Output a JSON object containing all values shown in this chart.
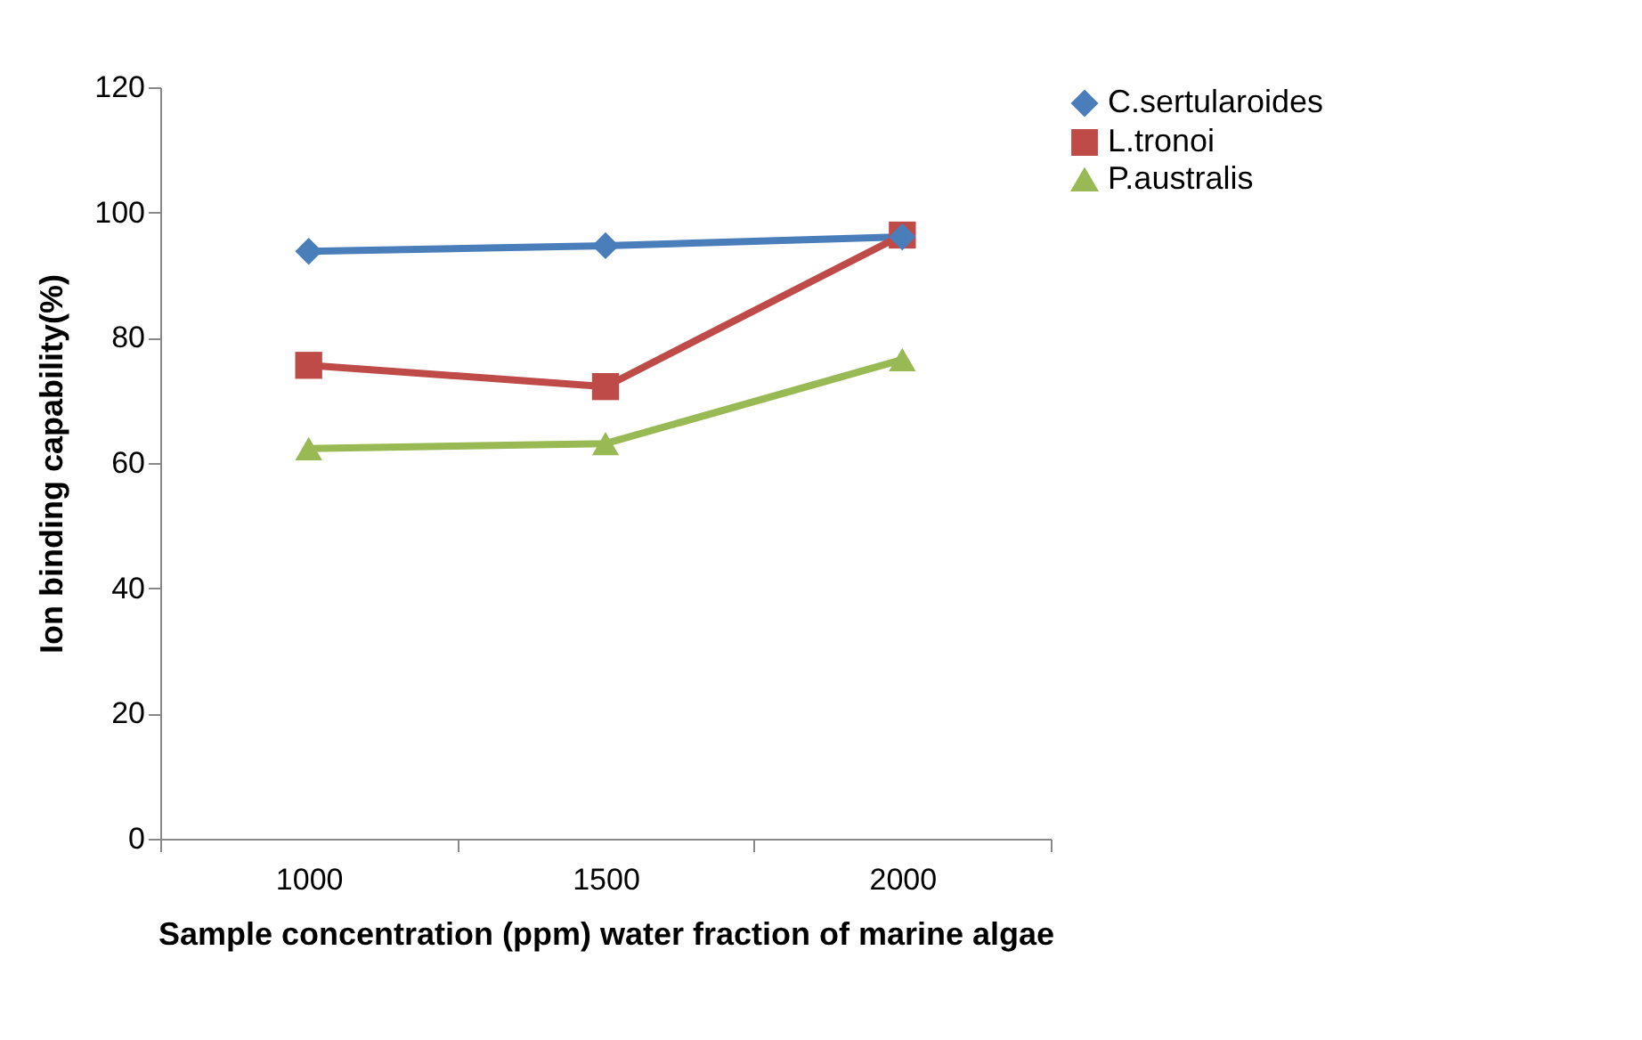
{
  "chart_data": {
    "type": "line",
    "xlabel": "Sample concentration (ppm) water fraction of marine algae",
    "ylabel": "Ion binding capability(%)",
    "categories": [
      "1000",
      "1500",
      "2000"
    ],
    "series": [
      {
        "name": "C.sertularoides",
        "color": "#4a7ebb",
        "marker": "diamond",
        "values": [
          93.8,
          94.7,
          96.1
        ]
      },
      {
        "name": "L.tronoi",
        "color": "#be4b48",
        "marker": "square",
        "values": [
          75.6,
          72.2,
          96.4
        ]
      },
      {
        "name": "P.australis",
        "color": "#98b954",
        "marker": "triangle",
        "values": [
          62.3,
          63.1,
          76.5
        ]
      }
    ],
    "ylim": [
      0,
      120
    ],
    "yticks": [
      0,
      20,
      40,
      60,
      80,
      100,
      120
    ],
    "legend": "right",
    "line_style": "solid"
  }
}
